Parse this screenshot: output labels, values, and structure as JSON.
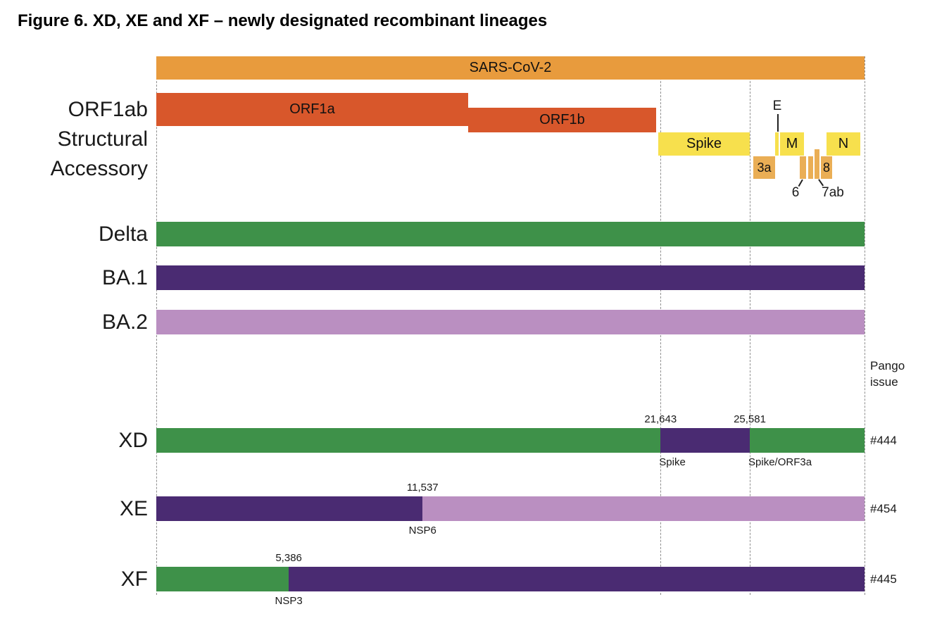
{
  "title": "Figure 6. XD, XE and XF – newly designated recombinant lineages",
  "colors": {
    "orange": "#E89B3D",
    "orf1": "#D8572B",
    "yellow": "#F7E04D",
    "gold": "#EAAE55",
    "green": "#3E9149",
    "dark_purple": "#4A2B72",
    "light_purple": "#BA8FC1"
  },
  "genome_map": {
    "sars": "SARS-CoV-2",
    "orf1a": "ORF1a",
    "orf1b": "ORF1b",
    "spike": "Spike",
    "e": "E",
    "m": "M",
    "n": "N",
    "orf3a": "3a",
    "orf6": "6",
    "orf7ab": "7ab",
    "orf8": "8"
  },
  "axis_labels": {
    "row1": "ORF1ab",
    "row2": "Structural",
    "row3": "Accessory"
  },
  "parents": [
    {
      "label": "Delta",
      "color": "green"
    },
    {
      "label": "BA.1",
      "color": "dark_purple"
    },
    {
      "label": "BA.2",
      "color": "light_purple"
    }
  ],
  "pango_issue": {
    "line1": "Pango",
    "line2": "issue"
  },
  "recombinants": [
    {
      "label": "XD",
      "issue": "#444",
      "segments": [
        {
          "color": "green",
          "from": 0,
          "to": 0.712
        },
        {
          "color": "dark_purple",
          "from": 0.712,
          "to": 0.838
        },
        {
          "color": "green",
          "from": 0.838,
          "to": 1
        }
      ],
      "breakpoints": [
        {
          "position": "21,643",
          "frac": 0.712,
          "gene": "Spike",
          "gene_align": "left"
        },
        {
          "position": "25,581",
          "frac": 0.838,
          "gene": "Spike/ORF3a",
          "gene_align": "left"
        }
      ]
    },
    {
      "label": "XE",
      "issue": "#454",
      "segments": [
        {
          "color": "dark_purple",
          "from": 0,
          "to": 0.376
        },
        {
          "color": "light_purple",
          "from": 0.376,
          "to": 1
        }
      ],
      "breakpoints": [
        {
          "position": "11,537",
          "frac": 0.376,
          "gene": "NSP6",
          "gene_align": "center"
        }
      ]
    },
    {
      "label": "XF",
      "issue": "#445",
      "segments": [
        {
          "color": "green",
          "from": 0,
          "to": 0.187
        },
        {
          "color": "dark_purple",
          "from": 0.187,
          "to": 1
        }
      ],
      "breakpoints": [
        {
          "position": "5,386",
          "frac": 0.187,
          "gene": "NSP3",
          "gene_align": "center"
        }
      ]
    }
  ]
}
